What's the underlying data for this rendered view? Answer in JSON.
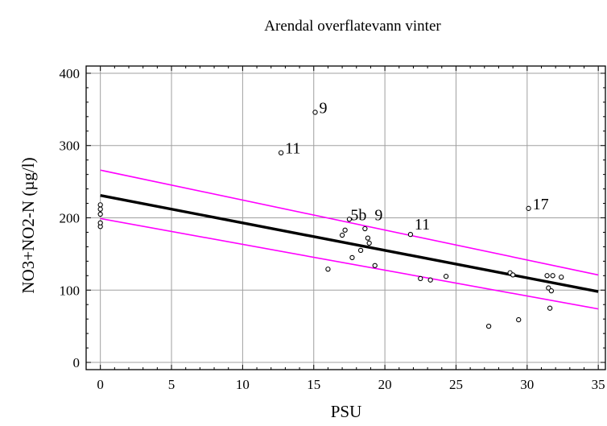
{
  "chart_data": {
    "type": "scatter",
    "title": "Arendal overflatevann vinter",
    "xlabel": "PSU",
    "ylabel": "NO3+NO2-N (µg/l)",
    "xlim": [
      -1,
      35.5
    ],
    "ylim": [
      -10,
      410
    ],
    "xticks": [
      0,
      5,
      10,
      15,
      20,
      25,
      30,
      35
    ],
    "yticks": [
      0,
      100,
      200,
      300,
      400
    ],
    "grid": true,
    "colors": {
      "fit": "#000000",
      "confidence": "#ff00ff",
      "points": "#000000",
      "grid": "#a0a0a0"
    },
    "points": [
      {
        "x": 0,
        "y": 188
      },
      {
        "x": 0,
        "y": 193
      },
      {
        "x": 0,
        "y": 205
      },
      {
        "x": 0,
        "y": 212
      },
      {
        "x": 0,
        "y": 218
      },
      {
        "x": 12.7,
        "y": 290
      },
      {
        "x": 15.1,
        "y": 346
      },
      {
        "x": 16.0,
        "y": 129
      },
      {
        "x": 17.0,
        "y": 176
      },
      {
        "x": 17.2,
        "y": 183
      },
      {
        "x": 17.5,
        "y": 198
      },
      {
        "x": 17.7,
        "y": 145
      },
      {
        "x": 18.3,
        "y": 155
      },
      {
        "x": 18.6,
        "y": 185
      },
      {
        "x": 18.8,
        "y": 172
      },
      {
        "x": 18.9,
        "y": 165
      },
      {
        "x": 19.3,
        "y": 134
      },
      {
        "x": 21.8,
        "y": 177
      },
      {
        "x": 22.5,
        "y": 116
      },
      {
        "x": 23.2,
        "y": 114
      },
      {
        "x": 24.3,
        "y": 119
      },
      {
        "x": 27.3,
        "y": 50
      },
      {
        "x": 28.8,
        "y": 124
      },
      {
        "x": 29.0,
        "y": 121
      },
      {
        "x": 29.4,
        "y": 59
      },
      {
        "x": 30.1,
        "y": 213
      },
      {
        "x": 31.4,
        "y": 120
      },
      {
        "x": 31.5,
        "y": 103
      },
      {
        "x": 31.6,
        "y": 75
      },
      {
        "x": 31.7,
        "y": 99
      },
      {
        "x": 31.8,
        "y": 120
      },
      {
        "x": 32.4,
        "y": 118
      }
    ],
    "fit_line": {
      "x": [
        0,
        35
      ],
      "y": [
        231,
        98
      ]
    },
    "upper_band": {
      "x": [
        0,
        35
      ],
      "y": [
        266,
        121
      ]
    },
    "lower_band": {
      "x": [
        0,
        35
      ],
      "y": [
        199,
        74
      ]
    },
    "annotations": [
      {
        "text": "9",
        "x": 15.1,
        "y": 346
      },
      {
        "text": "11",
        "x": 12.7,
        "y": 290
      },
      {
        "text": "5b",
        "x": 17.3,
        "y": 198
      },
      {
        "text": "9",
        "x": 19.0,
        "y": 198
      },
      {
        "text": "11",
        "x": 21.8,
        "y": 185
      },
      {
        "text": "17",
        "x": 30.1,
        "y": 213
      }
    ]
  }
}
